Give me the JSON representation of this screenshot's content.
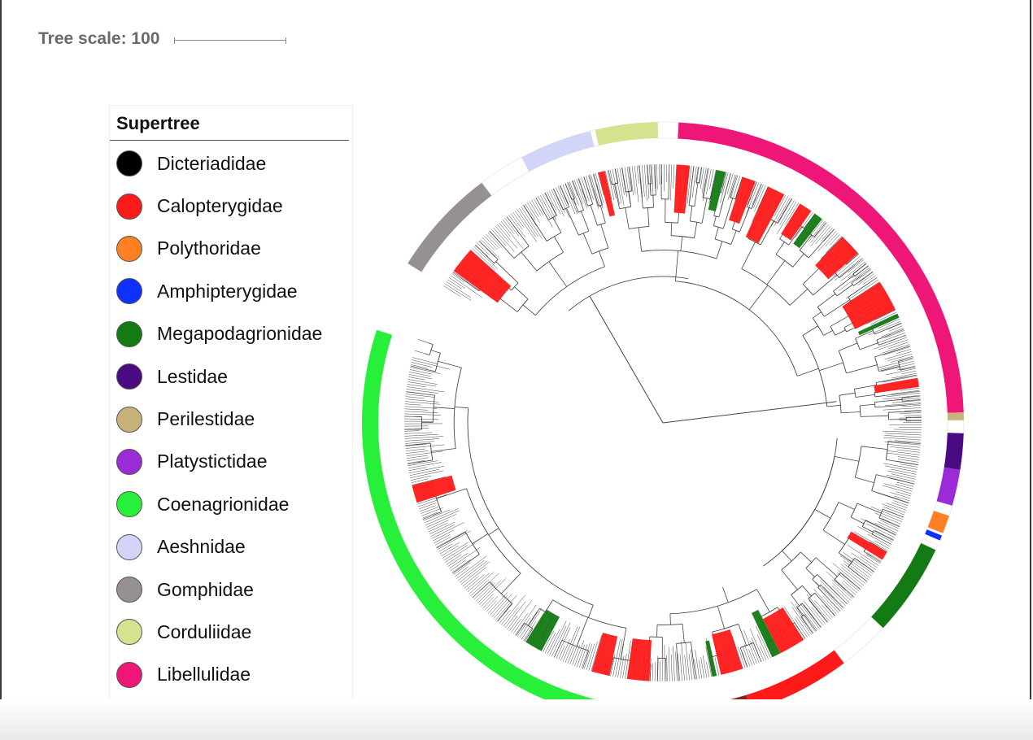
{
  "scale": {
    "label": "Tree scale: 100"
  },
  "legend": {
    "title": "Supertree",
    "items": [
      {
        "label": "Dicteriadidae",
        "color": "#000000"
      },
      {
        "label": "Calopterygidae",
        "color": "#ff1a1a"
      },
      {
        "label": "Polythoridae",
        "color": "#ff8022"
      },
      {
        "label": "Amphipterygidae",
        "color": "#1030ff"
      },
      {
        "label": "Megapodagrionidae",
        "color": "#147a14"
      },
      {
        "label": "Lestidae",
        "color": "#4a0a82"
      },
      {
        "label": "Perilestidae",
        "color": "#c8b27a"
      },
      {
        "label": "Platystictidae",
        "color": "#9a2bd6"
      },
      {
        "label": "Coenagrionidae",
        "color": "#28f03a"
      },
      {
        "label": "Aeshnidae",
        "color": "#d2d4f8"
      },
      {
        "label": "Gomphidae",
        "color": "#969090"
      },
      {
        "label": "Corduliidae",
        "color": "#d6e28e"
      },
      {
        "label": "Libellulidae",
        "color": "#ee1676"
      }
    ]
  },
  "ring_segments": [
    {
      "family": "Gomphidae",
      "color": "#969090",
      "from": 302,
      "to": 323
    },
    {
      "family": "none",
      "color": "#ffffff",
      "from": 323,
      "to": 332
    },
    {
      "family": "Aeshnidae",
      "color": "#d2d4f8",
      "from": 332,
      "to": 346
    },
    {
      "family": "none",
      "color": "#ffffff",
      "from": 346,
      "to": 347
    },
    {
      "family": "Corduliidae",
      "color": "#d6e28e",
      "from": 347,
      "to": 359
    },
    {
      "family": "none",
      "color": "#ffffff",
      "from": 359,
      "to": 363
    },
    {
      "family": "Libellulidae",
      "color": "#ee1676",
      "from": 363,
      "to": 448
    },
    {
      "family": "Perilestidae",
      "color": "#c8b27a",
      "from": 448,
      "to": 449.5
    },
    {
      "family": "none",
      "color": "#ffffff",
      "from": 449.5,
      "to": 452
    },
    {
      "family": "Lestidae",
      "color": "#4a0a82",
      "from": 452,
      "to": 459
    },
    {
      "family": "Platystictidae",
      "color": "#9a2bd6",
      "from": 459,
      "to": 466
    },
    {
      "family": "none",
      "color": "#ffffff",
      "from": 466,
      "to": 468
    },
    {
      "family": "Polythoridae",
      "color": "#ff8022",
      "from": 468,
      "to": 471.5
    },
    {
      "family": "Amphipterygidae",
      "color": "#1030ff",
      "from": 472,
      "to": 473
    },
    {
      "family": "none",
      "color": "#ffffff",
      "from": 474,
      "to": 475
    },
    {
      "family": "Megapodagrionidae",
      "color": "#147a14",
      "from": 475,
      "to": 493
    },
    {
      "family": "none",
      "color": "#ffffff",
      "from": 493,
      "to": 503
    },
    {
      "family": "Calopterygidae",
      "color": "#ff1a1a",
      "from": 503,
      "to": 523
    },
    {
      "family": "unlabeled",
      "color": "#8a1f1f",
      "from": 523,
      "to": 537
    },
    {
      "family": "none",
      "color": "#ffffff",
      "from": 537,
      "to": 546
    },
    {
      "family": "Coenagrionidae",
      "color": "#28f03a",
      "from": 546,
      "to": 648
    }
  ]
}
